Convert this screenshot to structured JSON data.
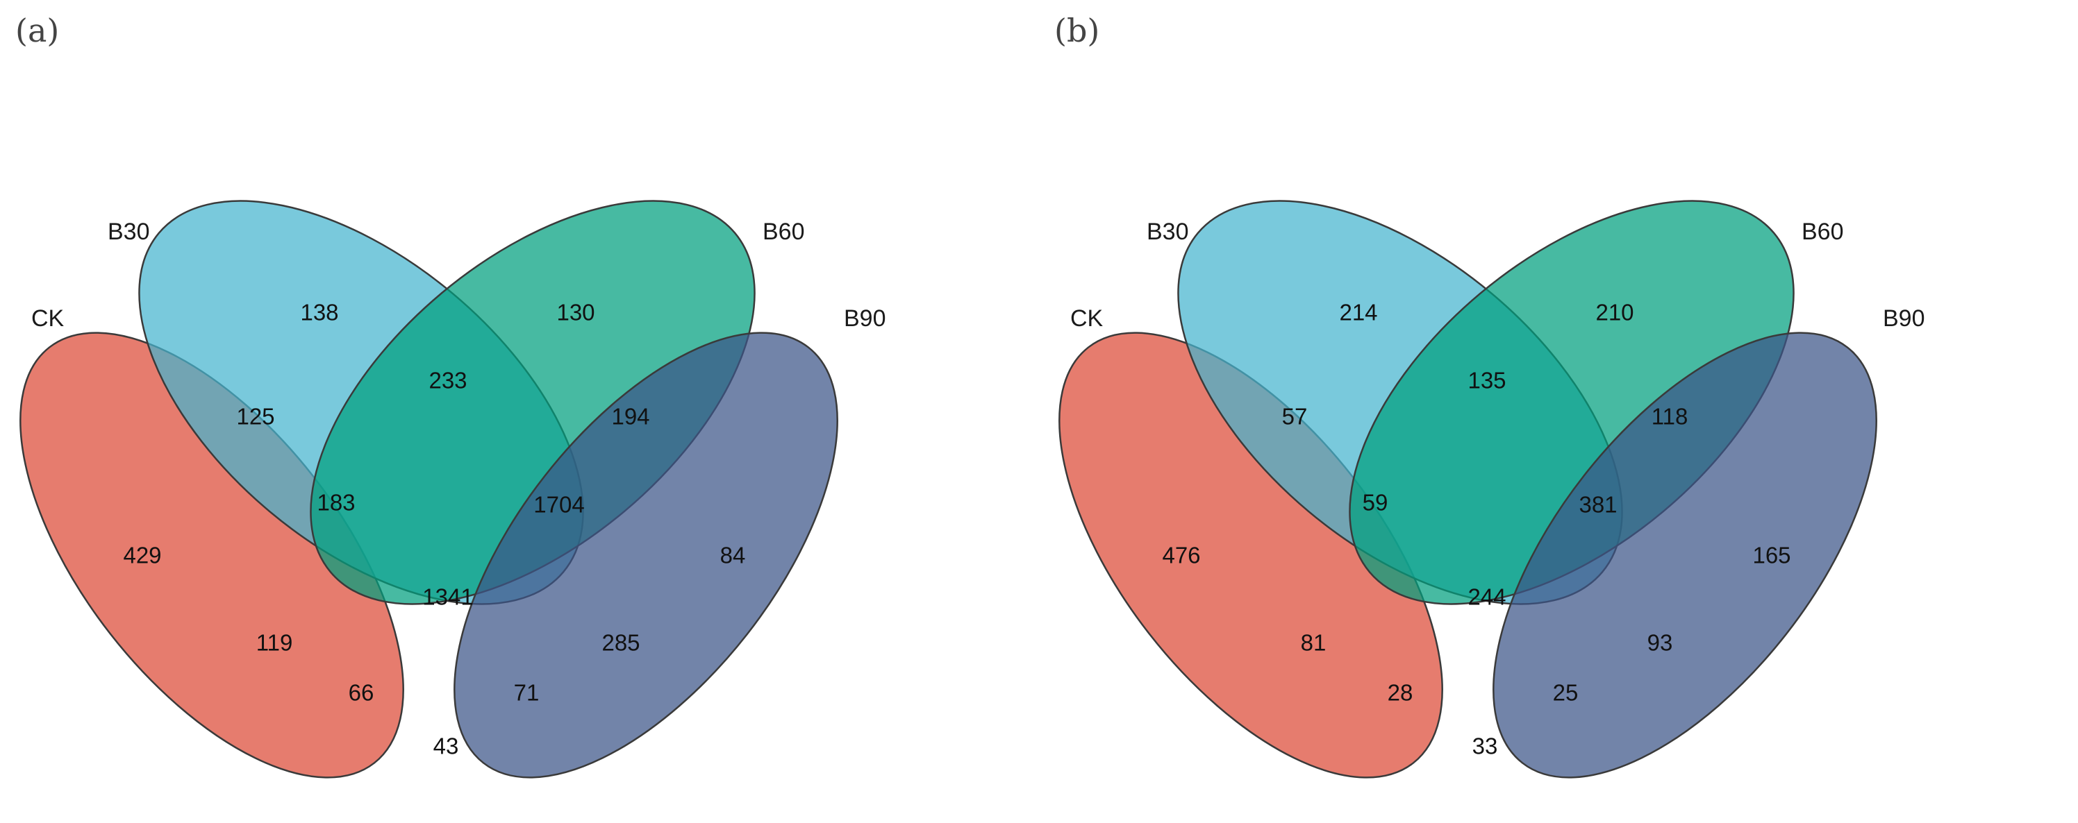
{
  "panels": [
    {
      "letter": "(a)",
      "sets": [
        {
          "name": "CK",
          "color": "#DD4A36"
        },
        {
          "name": "B30",
          "color": "#45B4CF"
        },
        {
          "name": "B60",
          "color": "#00A07E"
        },
        {
          "name": "B90",
          "color": "#3C5488"
        }
      ],
      "regions": {
        "CK": "429",
        "B30": "138",
        "B60": "130",
        "B90": "84",
        "CK_B30": "125",
        "B30_B60": "233",
        "B60_B90": "194",
        "CK_B60": "119",
        "CK_B90": "43",
        "B30_B90": "285",
        "CK_B30_B60": "183",
        "B30_B60_B90": "1704",
        "CK_B60_B90": "66",
        "CK_B30_B90": "71",
        "all": "1341"
      }
    },
    {
      "letter": "(b)",
      "sets": [
        {
          "name": "CK",
          "color": "#DD4A36"
        },
        {
          "name": "B30",
          "color": "#45B4CF"
        },
        {
          "name": "B60",
          "color": "#00A07E"
        },
        {
          "name": "B90",
          "color": "#3C5488"
        }
      ],
      "regions": {
        "CK": "476",
        "B30": "214",
        "B60": "210",
        "B90": "165",
        "CK_B30": "57",
        "B30_B60": "135",
        "B60_B90": "118",
        "CK_B60": "81",
        "CK_B90": "33",
        "B30_B90": "93",
        "CK_B30_B60": "59",
        "B30_B60_B90": "381",
        "CK_B60_B90": "28",
        "CK_B30_B90": "25",
        "all": "244"
      }
    }
  ]
}
